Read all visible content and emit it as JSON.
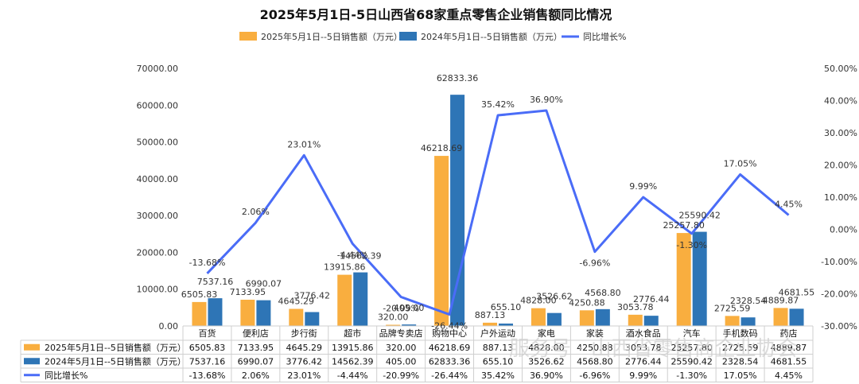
{
  "chart_data": {
    "type": "bar",
    "title": "2025年5月1日-5日山西省68家重点零售企业销售额同比情况",
    "categories": [
      "百货",
      "便利店",
      "步行街",
      "超市",
      "品牌专卖店",
      "购物中心",
      "户外运动",
      "家电",
      "家装",
      "酒水食品",
      "汽车",
      "手机数码",
      "药店"
    ],
    "series": [
      {
        "name": "2025年5月1日--5日销售额（万元）",
        "type": "bar",
        "axis": "left",
        "color": "#F9AE3F",
        "values": [
          6505.83,
          7133.95,
          4645.29,
          13915.86,
          320.0,
          46218.69,
          887.13,
          4828.0,
          4250.88,
          3053.78,
          25257.8,
          2725.59,
          4889.87
        ],
        "labels": [
          "6505.83",
          "7133.95",
          "4645.29",
          "13915.86",
          "320.00",
          "46218.69",
          "887.13",
          "4828.00",
          "4250.88",
          "3053.78",
          "25257.80",
          "2725.59",
          "4889.87"
        ]
      },
      {
        "name": "2024年5月1日--5日销售额（万元）",
        "type": "bar",
        "axis": "left",
        "color": "#2E75B6",
        "values": [
          7537.16,
          6990.07,
          3776.42,
          14562.39,
          405.0,
          62833.36,
          655.1,
          3526.62,
          4568.8,
          2776.44,
          25590.42,
          2328.54,
          4681.55
        ],
        "labels": [
          "7537.16",
          "6990.07",
          "3776.42",
          "14562.39",
          "405.00",
          "62833.36",
          "655.10",
          "3526.62",
          "4568.80",
          "2776.44",
          "25590.42",
          "2328.54",
          "4681.55"
        ]
      },
      {
        "name": "同比增长%",
        "type": "line",
        "axis": "right",
        "color": "#4A6CF7",
        "values": [
          -13.68,
          2.06,
          23.01,
          -4.44,
          -20.99,
          -26.44,
          35.42,
          36.9,
          -6.96,
          9.99,
          -1.3,
          17.05,
          4.45
        ],
        "labels": [
          "-13.68%",
          "2.06%",
          "23.01%",
          "-4.44%",
          "-20.99%",
          "-26.44%",
          "35.42%",
          "36.90%",
          "-6.96%",
          "9.99%",
          "-1.30%",
          "17.05%",
          "4.45%"
        ]
      }
    ],
    "left_axis": {
      "min": 0,
      "max": 70000,
      "step": 10000,
      "ticks": [
        "0.00",
        "10000.00",
        "20000.00",
        "30000.00",
        "40000.00",
        "50000.00",
        "60000.00",
        "70000.00"
      ]
    },
    "right_axis": {
      "min": -30,
      "max": 50,
      "step": 10,
      "ticks": [
        "-30.00%",
        "-20.00%",
        "-10.00%",
        "0.00%",
        "10.00%",
        "20.00%",
        "30.00%",
        "40.00%",
        "50.00%"
      ]
    },
    "grid": false,
    "legend": "top",
    "data_table": true
  },
  "watermark": "服务号 · 山西省零售商企业协会"
}
